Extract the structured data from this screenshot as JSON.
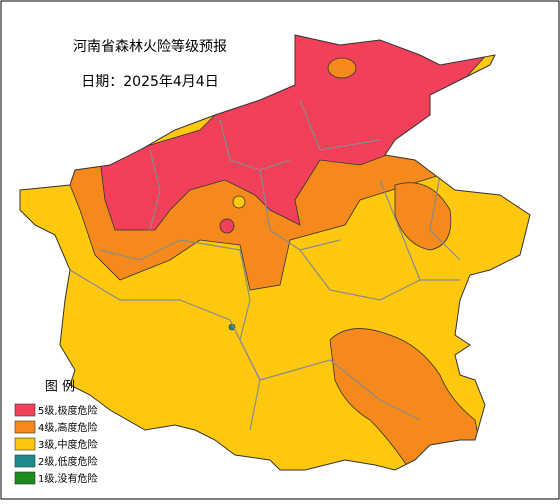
{
  "title": "河南省森林火险等级预报",
  "date": "日期：2025年4月4日",
  "legend": {
    "title": "图  例",
    "items": [
      {
        "label": "5级,极度危险",
        "color": "#f2405a"
      },
      {
        "label": "4级,高度危险",
        "color": "#f5891c"
      },
      {
        "label": "3级,中度危险",
        "color": "#fdc80d"
      },
      {
        "label": "2级,低度危险",
        "color": "#1f8a8e"
      },
      {
        "label": "1级,没有危险",
        "color": "#1c8a1c"
      }
    ]
  }
}
